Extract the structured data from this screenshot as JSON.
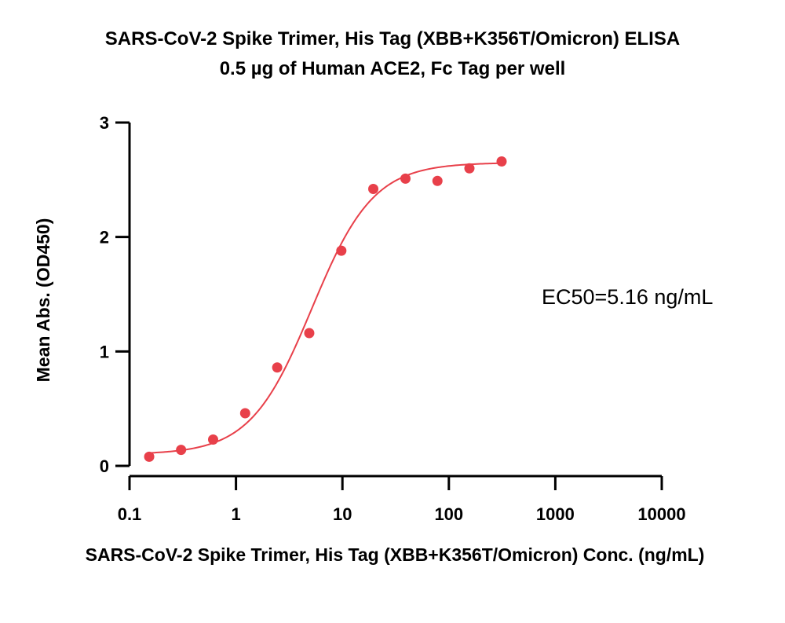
{
  "chart_data": {
    "type": "scatter",
    "title": "SARS-CoV-2 Spike Trimer, His Tag (XBB+K356T/Omicron) ELISA",
    "subtitle": "0.5 µg of Human ACE2, Fc Tag per well",
    "xlabel": "SARS-CoV-2 Spike Trimer, His Tag (XBB+K356T/Omicron) Conc. (ng/mL)",
    "ylabel": "Mean Abs. (OD450)",
    "x_scale": "log",
    "xlim": [
      0.1,
      10000
    ],
    "ylim": [
      0,
      3
    ],
    "x_ticks": [
      0.1,
      1,
      10,
      100,
      1000,
      10000
    ],
    "x_tick_labels": [
      "0.1",
      "1",
      "10",
      "100",
      "1000",
      "10000"
    ],
    "y_ticks": [
      0,
      1,
      2,
      3
    ],
    "y_tick_labels": [
      "0",
      "1",
      "2",
      "3"
    ],
    "points": {
      "x": [
        0.153,
        0.305,
        0.61,
        1.22,
        2.44,
        4.88,
        9.77,
        19.5,
        39.1,
        78.1,
        156,
        313
      ],
      "y": [
        0.08,
        0.14,
        0.23,
        0.46,
        0.86,
        1.16,
        1.88,
        2.42,
        2.51,
        2.49,
        2.6,
        2.66
      ]
    },
    "fit": {
      "model": "4PL",
      "bottom": 0.1,
      "top": 2.65,
      "ec50": 5.16,
      "hill": 1.5,
      "x_range": [
        0.153,
        313
      ]
    },
    "annotations": [
      "EC50=5.16 ng/mL"
    ],
    "colors": {
      "series": "#e8404a",
      "axes": "#000000"
    },
    "grid": false,
    "legend": "none"
  }
}
